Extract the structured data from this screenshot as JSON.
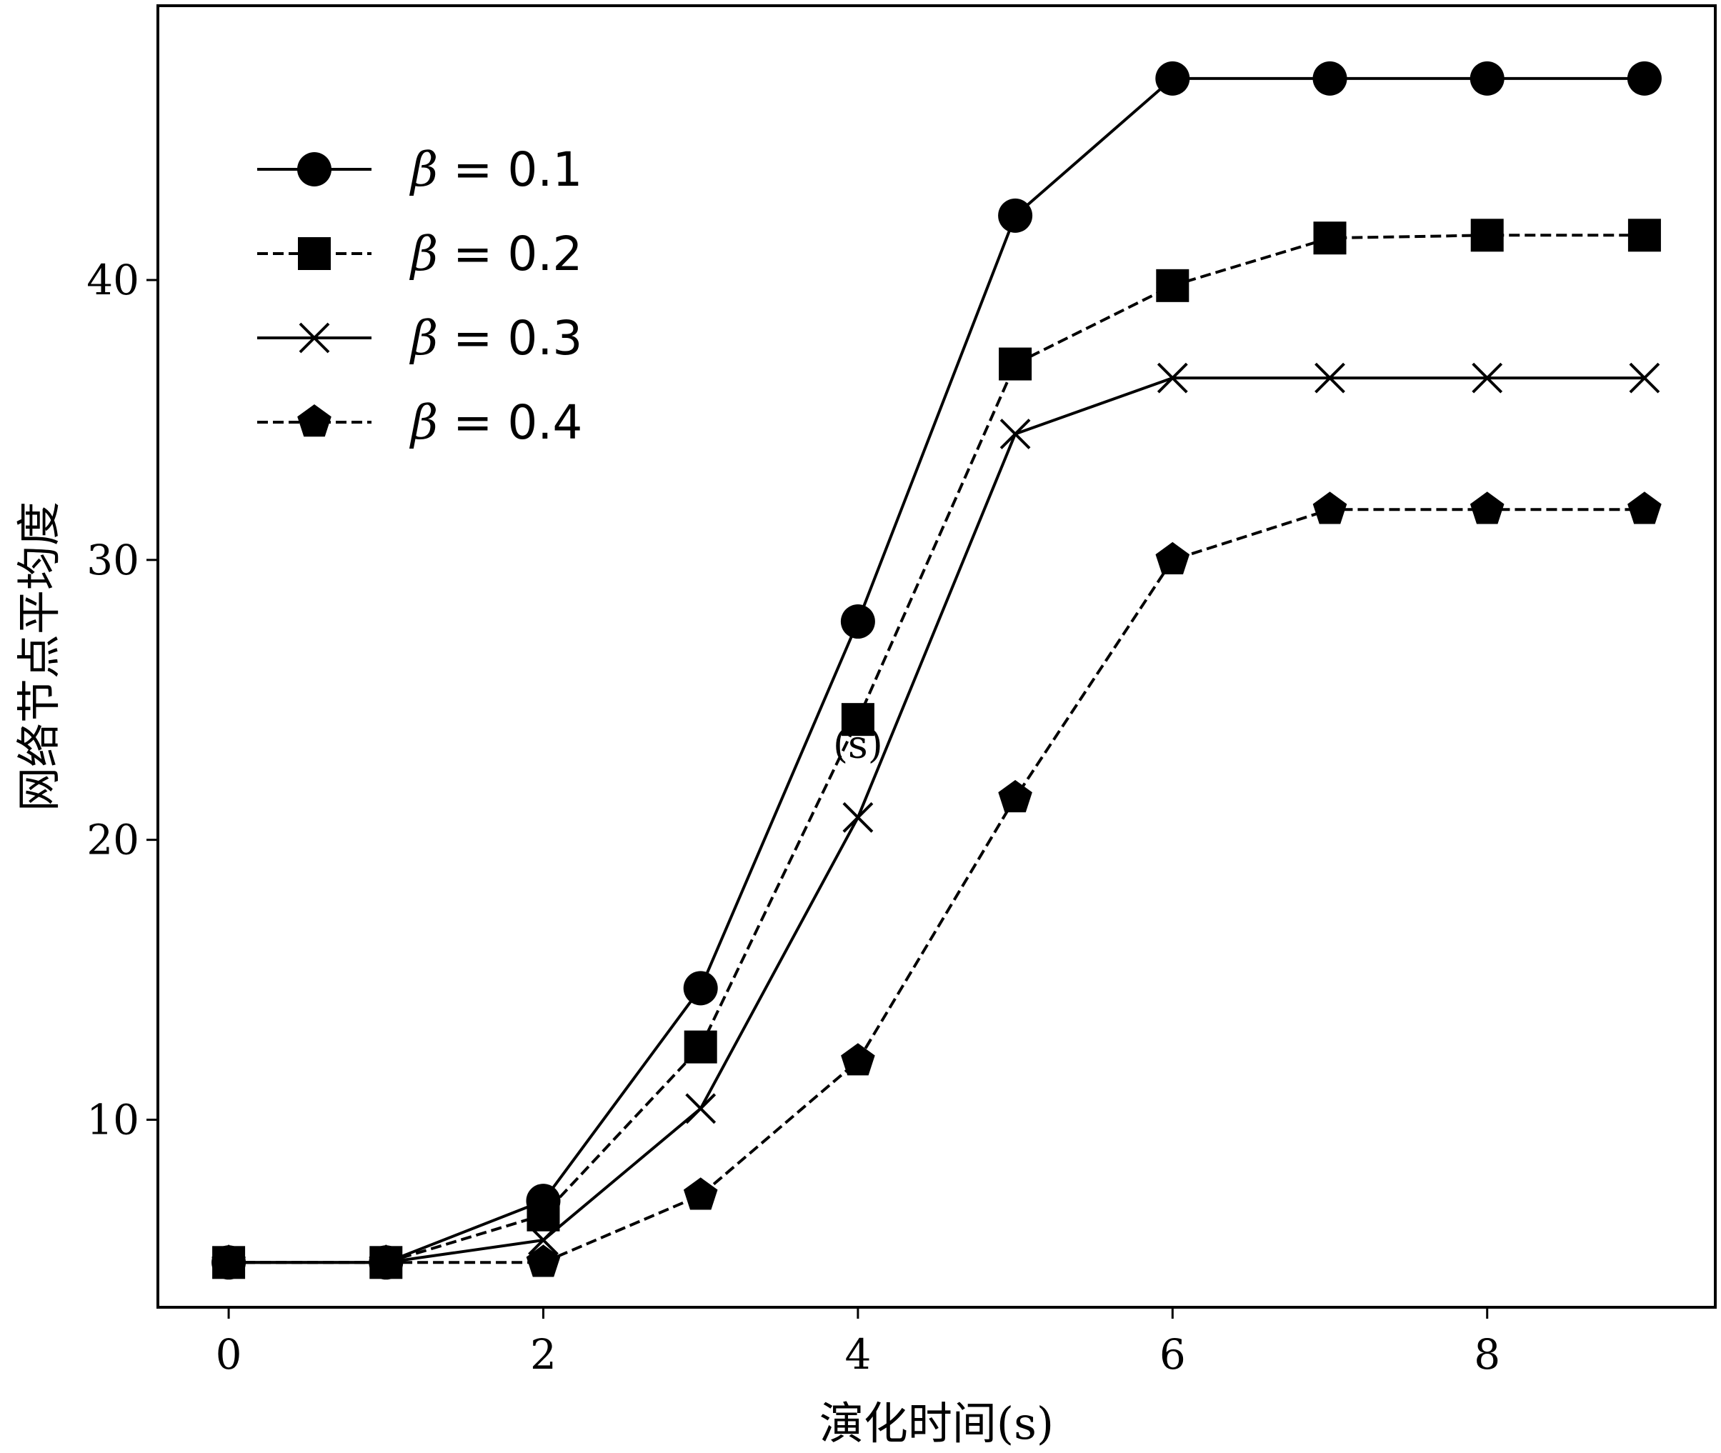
{
  "chart_data": {
    "type": "line",
    "title": "",
    "xlabel": "演化时间(s)",
    "ylabel": "网络节点平均度",
    "x": [
      0,
      1,
      2,
      3,
      4,
      5,
      6,
      7,
      8,
      9
    ],
    "xlim": [
      -0.45,
      9.45
    ],
    "ylim": [
      3.3,
      49.8
    ],
    "xticks": [
      0,
      2,
      4,
      6,
      8
    ],
    "yticks": [
      10,
      20,
      30,
      40
    ],
    "grid": false,
    "legend_position": "top-left",
    "series": [
      {
        "name": "β = 0.1",
        "legend_symbol": "β",
        "legend_rest": " = 0.1",
        "marker": "circle",
        "linestyle": "solid",
        "values": [
          4.9,
          4.9,
          7.1,
          14.7,
          27.8,
          42.3,
          47.2,
          47.2,
          47.2,
          47.2
        ]
      },
      {
        "name": "β = 0.2",
        "legend_symbol": "β",
        "legend_rest": " = 0.2",
        "marker": "square",
        "linestyle": "dashed",
        "values": [
          4.9,
          4.9,
          6.6,
          12.6,
          24.3,
          37.0,
          39.8,
          41.5,
          41.6,
          41.6
        ]
      },
      {
        "name": "β = 0.3",
        "legend_symbol": "β",
        "legend_rest": " = 0.3",
        "marker": "x",
        "linestyle": "solid",
        "values": [
          4.9,
          4.9,
          5.7,
          10.4,
          20.8,
          34.5,
          36.5,
          36.5,
          36.5,
          36.5
        ]
      },
      {
        "name": "β = 0.4",
        "legend_symbol": "β",
        "legend_rest": " = 0.4",
        "marker": "pentagon",
        "linestyle": "dashed",
        "values": [
          4.9,
          4.9,
          4.9,
          7.3,
          12.1,
          21.5,
          30.0,
          31.8,
          31.8,
          31.8
        ]
      }
    ],
    "annotations": [
      {
        "text": "(s)",
        "x": 4.0,
        "y": 23.4
      }
    ],
    "colors": {
      "line": "#000000",
      "background": "#ffffff"
    }
  }
}
